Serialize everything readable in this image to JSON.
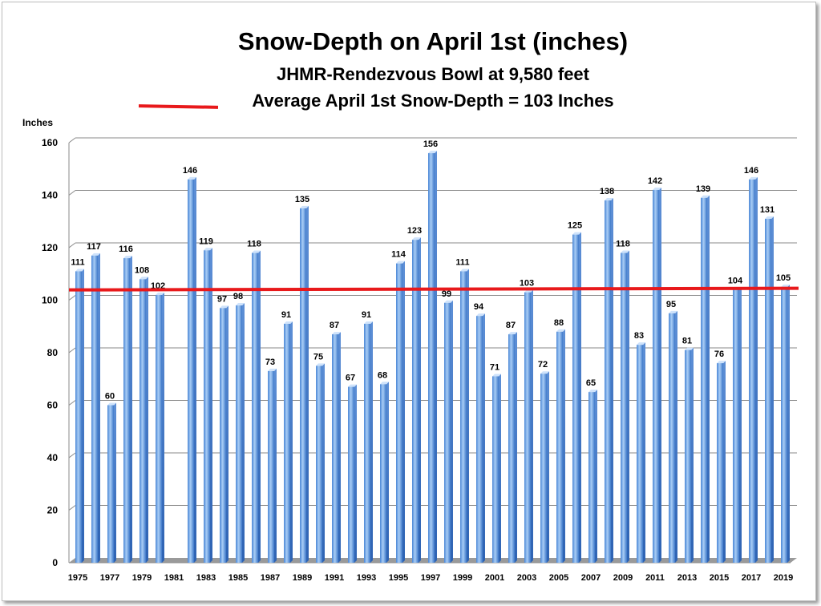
{
  "chart_data": {
    "type": "bar",
    "title": "Snow-Depth on April 1st (inches)",
    "subtitle": "JHMR-Rendezvous Bowl at 9,580 feet",
    "legend_text": "Average April 1st Snow-Depth = 103 Inches",
    "ylabel": "Inches",
    "xlabel": "",
    "ylim": [
      0,
      160
    ],
    "yticks": [
      0,
      20,
      40,
      60,
      80,
      100,
      120,
      140,
      160
    ],
    "grid": true,
    "average_line": {
      "value": 103,
      "color": "#e8191b"
    },
    "x_tick_labels": [
      "1975",
      "1977",
      "1979",
      "1981",
      "1983",
      "1985",
      "1987",
      "1989",
      "1991",
      "1993",
      "1995",
      "1997",
      "1999",
      "2001",
      "2003",
      "2005",
      "2007",
      "2009",
      "2011",
      "2013",
      "2015",
      "2017",
      "2019"
    ],
    "categories": [
      "1975",
      "1976",
      "1977",
      "1978",
      "1979",
      "1980",
      "1981",
      "1982",
      "1983",
      "1984",
      "1985",
      "1986",
      "1987",
      "1988",
      "1989",
      "1990",
      "1991",
      "1992",
      "1993",
      "1994",
      "1995",
      "1996",
      "1997",
      "1998",
      "1999",
      "2000",
      "2001",
      "2002",
      "2003",
      "2004",
      "2005",
      "2006",
      "2007",
      "2008",
      "2009",
      "2010",
      "2011",
      "2012",
      "2013",
      "2014",
      "2015",
      "2016",
      "2017",
      "2018",
      "2019"
    ],
    "values": [
      111,
      117,
      60,
      116,
      108,
      102,
      null,
      146,
      119,
      97,
      98,
      118,
      73,
      91,
      135,
      75,
      87,
      67,
      91,
      68,
      114,
      123,
      156,
      99,
      111,
      94,
      71,
      87,
      103,
      72,
      88,
      125,
      65,
      138,
      118,
      83,
      142,
      95,
      81,
      139,
      76,
      104,
      146,
      131,
      105
    ],
    "bar_color": "#7fb2ec"
  }
}
